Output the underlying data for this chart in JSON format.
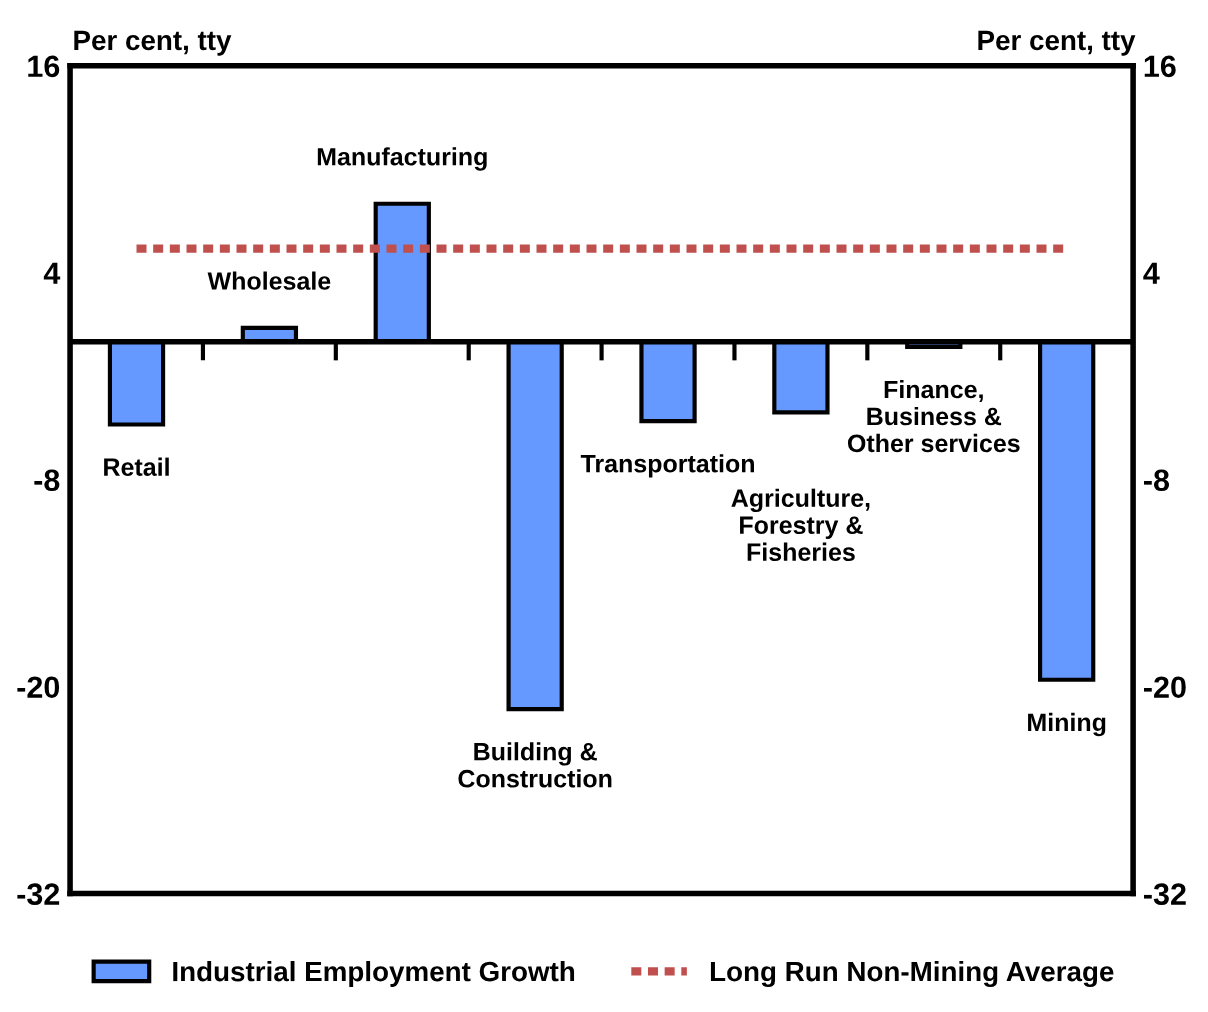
{
  "chart_data": {
    "type": "bar",
    "ylabel": "Per cent, tty",
    "y2label": "Per cent, tty",
    "categories": [
      "Retail",
      "Wholesale",
      "Manufacturing",
      "Building & Construction",
      "Transportation",
      "Agriculture, Forestry & Fisheries",
      "Finance, Business & Other services",
      "Mining"
    ],
    "series": [
      {
        "name": "Industrial Employment Growth",
        "color": "#6699ff",
        "values": [
          -4.8,
          0.8,
          8.0,
          -21.3,
          -4.6,
          -4.1,
          -0.3,
          -19.6
        ]
      },
      {
        "name": "Long Run Non-Mining Average",
        "type": "line",
        "color": "#c0504d",
        "line_style": "dotted",
        "values": [
          5.4,
          5.4,
          5.4,
          5.4,
          5.4,
          5.4,
          5.4,
          5.4
        ]
      }
    ],
    "ylim": [
      -32,
      16
    ],
    "yticks": [
      -32,
      -20,
      -8,
      4,
      16
    ],
    "y2lim": [
      -32,
      16
    ],
    "y2ticks": [
      -32,
      -20,
      -8,
      4,
      16
    ],
    "grid": false,
    "legend": "bottom"
  }
}
